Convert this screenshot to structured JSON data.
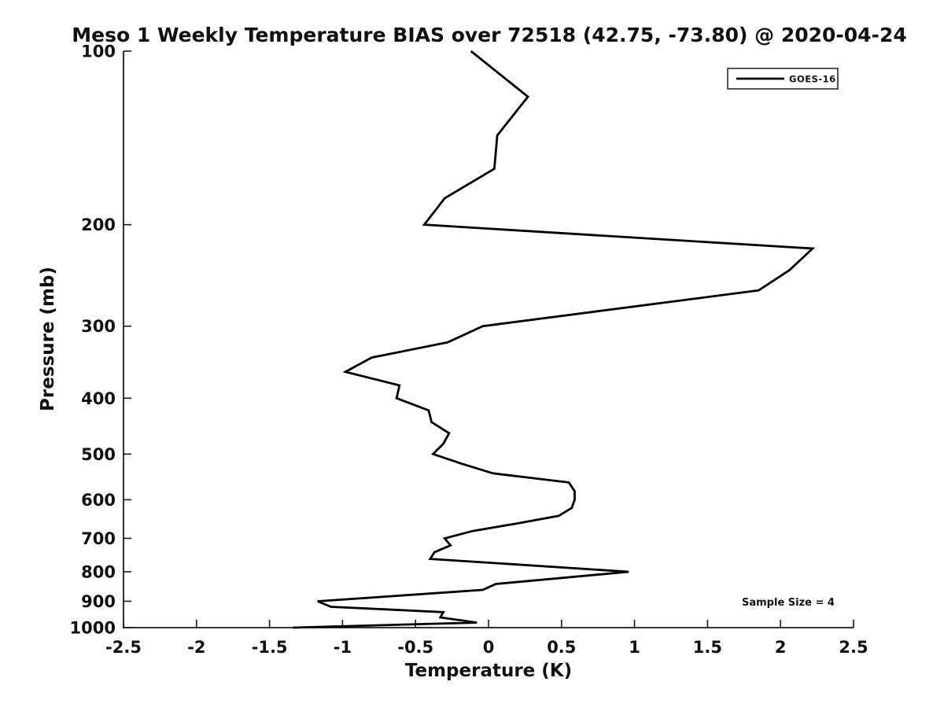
{
  "chart_data": {
    "type": "line",
    "title": "Meso 1 Weekly Temperature BIAS over 72518 (42.75, -73.80) @ 2020-04-24",
    "xlabel": "Temperature (K)",
    "ylabel": "Pressure (mb)",
    "xlim": [
      -2.5,
      2.5
    ],
    "ylim": [
      100,
      1000
    ],
    "y_scale": "log",
    "y_inverted": true,
    "grid": false,
    "x_ticks": {
      "values": [
        -2.5,
        -2,
        -1.5,
        -1,
        -0.5,
        0,
        0.5,
        1,
        1.5,
        2,
        2.5
      ],
      "labels": [
        "-2.5",
        "-2",
        "-1.5",
        "-1",
        "-0.5",
        "0",
        "0.5",
        "1",
        "1.5",
        "2",
        "2.5"
      ]
    },
    "y_ticks": {
      "values": [
        100,
        200,
        300,
        400,
        500,
        600,
        700,
        800,
        900,
        1000
      ],
      "labels": [
        "100",
        "200",
        "300",
        "400",
        "500",
        "600",
        "700",
        "800",
        "900",
        "1000"
      ]
    },
    "legend": {
      "label": "GOES-16",
      "position": "top-right"
    },
    "annotation": "Sample Size = 4",
    "colors": {
      "line": "#000000",
      "text": "#111111",
      "background": "#ffffff"
    },
    "series": [
      {
        "name": "GOES-16",
        "color": "#000000",
        "pressure_mb": [
          100,
          120,
          140,
          160,
          180,
          200,
          220,
          240,
          260,
          300,
          320,
          340,
          360,
          380,
          400,
          420,
          440,
          460,
          480,
          500,
          520,
          540,
          560,
          580,
          600,
          620,
          640,
          660,
          680,
          700,
          720,
          740,
          760,
          800,
          840,
          860,
          900,
          920,
          940,
          960,
          980,
          1000
        ],
        "bias_k": [
          -0.12,
          0.27,
          0.06,
          0.04,
          -0.3,
          -0.44,
          2.22,
          2.06,
          1.85,
          -0.04,
          -0.28,
          -0.8,
          -0.98,
          -0.61,
          -0.63,
          -0.41,
          -0.39,
          -0.27,
          -0.31,
          -0.38,
          -0.18,
          0.03,
          0.55,
          0.59,
          0.59,
          0.57,
          0.48,
          0.19,
          -0.11,
          -0.3,
          -0.26,
          -0.37,
          -0.4,
          0.96,
          0.05,
          -0.04,
          -1.17,
          -1.08,
          -0.31,
          -0.33,
          -0.08,
          -1.34
        ]
      }
    ]
  }
}
